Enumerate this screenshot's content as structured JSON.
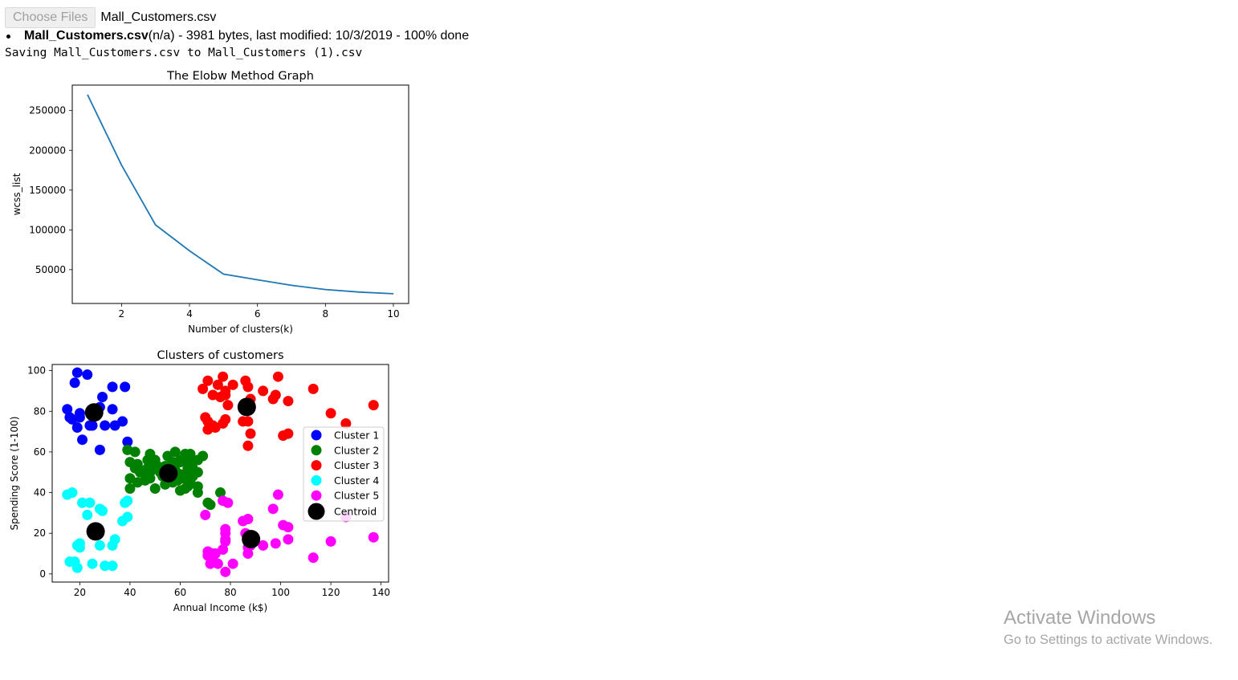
{
  "upload": {
    "button_label": "Choose Files",
    "selected_file": "Mall_Customers.csv",
    "file_name": "Mall_Customers.csv",
    "file_detail": "(n/a) - 3981 bytes, last modified: 10/3/2019 - 100% done"
  },
  "output": {
    "saving_message": "Saving Mall_Customers.csv to Mall_Customers (1).csv"
  },
  "watermark": {
    "title": "Activate Windows",
    "subtitle": "Go to Settings to activate Windows."
  },
  "chart_data": [
    {
      "type": "line",
      "title": "The Elobw Method Graph",
      "xlabel": "Number of clusters(k)",
      "ylabel": "wcss_list",
      "xlim": [
        0.55,
        10.45
      ],
      "ylim": [
        7500,
        282000
      ],
      "xticks": [
        2,
        4,
        6,
        8,
        10
      ],
      "yticks": [
        50000,
        100000,
        150000,
        200000,
        250000
      ],
      "grid": false,
      "color": "#1f77b4",
      "x": [
        1,
        2,
        3,
        4,
        5,
        6,
        7,
        8,
        9,
        10
      ],
      "y": [
        269981,
        181363,
        106348,
        73679,
        44448,
        37233,
        30259,
        25011,
        21850,
        19672
      ]
    },
    {
      "type": "scatter",
      "title": "Clusters of customers",
      "xlabel": "Annual Income (k$)",
      "ylabel": "Spending Score (1-100)",
      "xlim": [
        9,
        143
      ],
      "ylim": [
        -4,
        103
      ],
      "xticks": [
        20,
        40,
        60,
        80,
        100,
        120,
        140
      ],
      "yticks": [
        0,
        20,
        40,
        60,
        80,
        100
      ],
      "grid": false,
      "legend_position": "center-right",
      "series": [
        {
          "name": "Cluster 1",
          "color": "#0000ff",
          "points": [
            [
              15,
              81
            ],
            [
              16,
              77
            ],
            [
              17,
              76
            ],
            [
              18,
              94
            ],
            [
              19,
              72
            ],
            [
              19,
              99
            ],
            [
              20,
              77
            ],
            [
              20,
              79
            ],
            [
              21,
              66
            ],
            [
              23,
              98
            ],
            [
              24,
              73
            ],
            [
              25,
              73
            ],
            [
              28,
              82
            ],
            [
              28,
              61
            ],
            [
              29,
              87
            ],
            [
              30,
              73
            ],
            [
              33,
              92
            ],
            [
              33,
              81
            ],
            [
              34,
              73
            ],
            [
              37,
              75
            ],
            [
              38,
              92
            ],
            [
              39,
              65
            ]
          ]
        },
        {
          "name": "Cluster 2",
          "color": "#008000",
          "points": [
            [
              39,
              61
            ],
            [
              40,
              55
            ],
            [
              40,
              47
            ],
            [
              40,
              42
            ],
            [
              42,
              52
            ],
            [
              42,
              60
            ],
            [
              43,
              54
            ],
            [
              43,
              45
            ],
            [
              44,
              50
            ],
            [
              46,
              51
            ],
            [
              46,
              46
            ],
            [
              47,
              56
            ],
            [
              47,
              52
            ],
            [
              48,
              59
            ],
            [
              48,
              50
            ],
            [
              48,
              47
            ],
            [
              49,
              55
            ],
            [
              50,
              56
            ],
            [
              50,
              42
            ],
            [
              51,
              53
            ],
            [
              52,
              50
            ],
            [
              53,
              48
            ],
            [
              54,
              51
            ],
            [
              54,
              53
            ],
            [
              54,
              44
            ],
            [
              55,
              58
            ],
            [
              55,
              47
            ],
            [
              57,
              45
            ],
            [
              57,
              55
            ],
            [
              58,
              51
            ],
            [
              58,
              60
            ],
            [
              59,
              46
            ],
            [
              60,
              55
            ],
            [
              60,
              41
            ],
            [
              60,
              49
            ],
            [
              60,
              56
            ],
            [
              61,
              47
            ],
            [
              62,
              42
            ],
            [
              62,
              59
            ],
            [
              62,
              56
            ],
            [
              63,
              52
            ],
            [
              63,
              50
            ],
            [
              63,
              43
            ],
            [
              64,
              46
            ],
            [
              64,
              59
            ],
            [
              65,
              48
            ],
            [
              65,
              52
            ],
            [
              65,
              55
            ],
            [
              67,
              40
            ],
            [
              67,
              50
            ],
            [
              67,
              43
            ],
            [
              67,
              56
            ],
            [
              69,
              58
            ],
            [
              71,
              35
            ],
            [
              72,
              34
            ],
            [
              76,
              40
            ]
          ]
        },
        {
          "name": "Cluster 3",
          "color": "#ff0000",
          "points": [
            [
              69,
              91
            ],
            [
              70,
              77
            ],
            [
              71,
              95
            ],
            [
              71,
              75
            ],
            [
              71,
              71
            ],
            [
              72,
              73
            ],
            [
              73,
              88
            ],
            [
              73,
              73
            ],
            [
              74,
              72
            ],
            [
              75,
              93
            ],
            [
              76,
              87
            ],
            [
              77,
              97
            ],
            [
              77,
              74
            ],
            [
              78,
              90
            ],
            [
              78,
              76
            ],
            [
              78,
              88
            ],
            [
              79,
              83
            ],
            [
              81,
              93
            ],
            [
              85,
              75
            ],
            [
              86,
              95
            ],
            [
              87,
              63
            ],
            [
              87,
              75
            ],
            [
              87,
              92
            ],
            [
              88,
              86
            ],
            [
              88,
              69
            ],
            [
              93,
              90
            ],
            [
              97,
              86
            ],
            [
              98,
              88
            ],
            [
              99,
              97
            ],
            [
              101,
              68
            ],
            [
              103,
              85
            ],
            [
              103,
              69
            ],
            [
              113,
              91
            ],
            [
              120,
              79
            ],
            [
              126,
              74
            ],
            [
              137,
              83
            ]
          ]
        },
        {
          "name": "Cluster 4",
          "color": "#00ffff",
          "points": [
            [
              15,
              39
            ],
            [
              16,
              6
            ],
            [
              17,
              40
            ],
            [
              18,
              6
            ],
            [
              19,
              3
            ],
            [
              19,
              14
            ],
            [
              20,
              15
            ],
            [
              20,
              13
            ],
            [
              21,
              35
            ],
            [
              23,
              29
            ],
            [
              24,
              35
            ],
            [
              25,
              5
            ],
            [
              28,
              14
            ],
            [
              28,
              32
            ],
            [
              29,
              31
            ],
            [
              30,
              4
            ],
            [
              33,
              4
            ],
            [
              33,
              14
            ],
            [
              34,
              17
            ],
            [
              37,
              26
            ],
            [
              38,
              35
            ],
            [
              39,
              28
            ],
            [
              39,
              36
            ]
          ]
        },
        {
          "name": "Cluster 5",
          "color": "#ff00ff",
          "points": [
            [
              70,
              29
            ],
            [
              71,
              11
            ],
            [
              71,
              9
            ],
            [
              72,
              5
            ],
            [
              73,
              7
            ],
            [
              73,
              10
            ],
            [
              74,
              10
            ],
            [
              75,
              5
            ],
            [
              77,
              12
            ],
            [
              77,
              36
            ],
            [
              78,
              1
            ],
            [
              78,
              16
            ],
            [
              78,
              17
            ],
            [
              78,
              22
            ],
            [
              78,
              20
            ],
            [
              79,
              35
            ],
            [
              81,
              5
            ],
            [
              85,
              26
            ],
            [
              86,
              20
            ],
            [
              87,
              10
            ],
            [
              87,
              27
            ],
            [
              87,
              13
            ],
            [
              88,
              15
            ],
            [
              88,
              14
            ],
            [
              93,
              14
            ],
            [
              97,
              32
            ],
            [
              98,
              15
            ],
            [
              99,
              39
            ],
            [
              101,
              24
            ],
            [
              103,
              23
            ],
            [
              103,
              17
            ],
            [
              113,
              8
            ],
            [
              120,
              16
            ],
            [
              126,
              28
            ],
            [
              137,
              18
            ]
          ]
        }
      ],
      "centroids": {
        "name": "Centroid",
        "color": "#000000",
        "points": [
          [
            25.7,
            79.4
          ],
          [
            55.3,
            49.5
          ],
          [
            86.5,
            82.1
          ],
          [
            26.3,
            20.9
          ],
          [
            88.2,
            17.1
          ]
        ]
      }
    }
  ]
}
